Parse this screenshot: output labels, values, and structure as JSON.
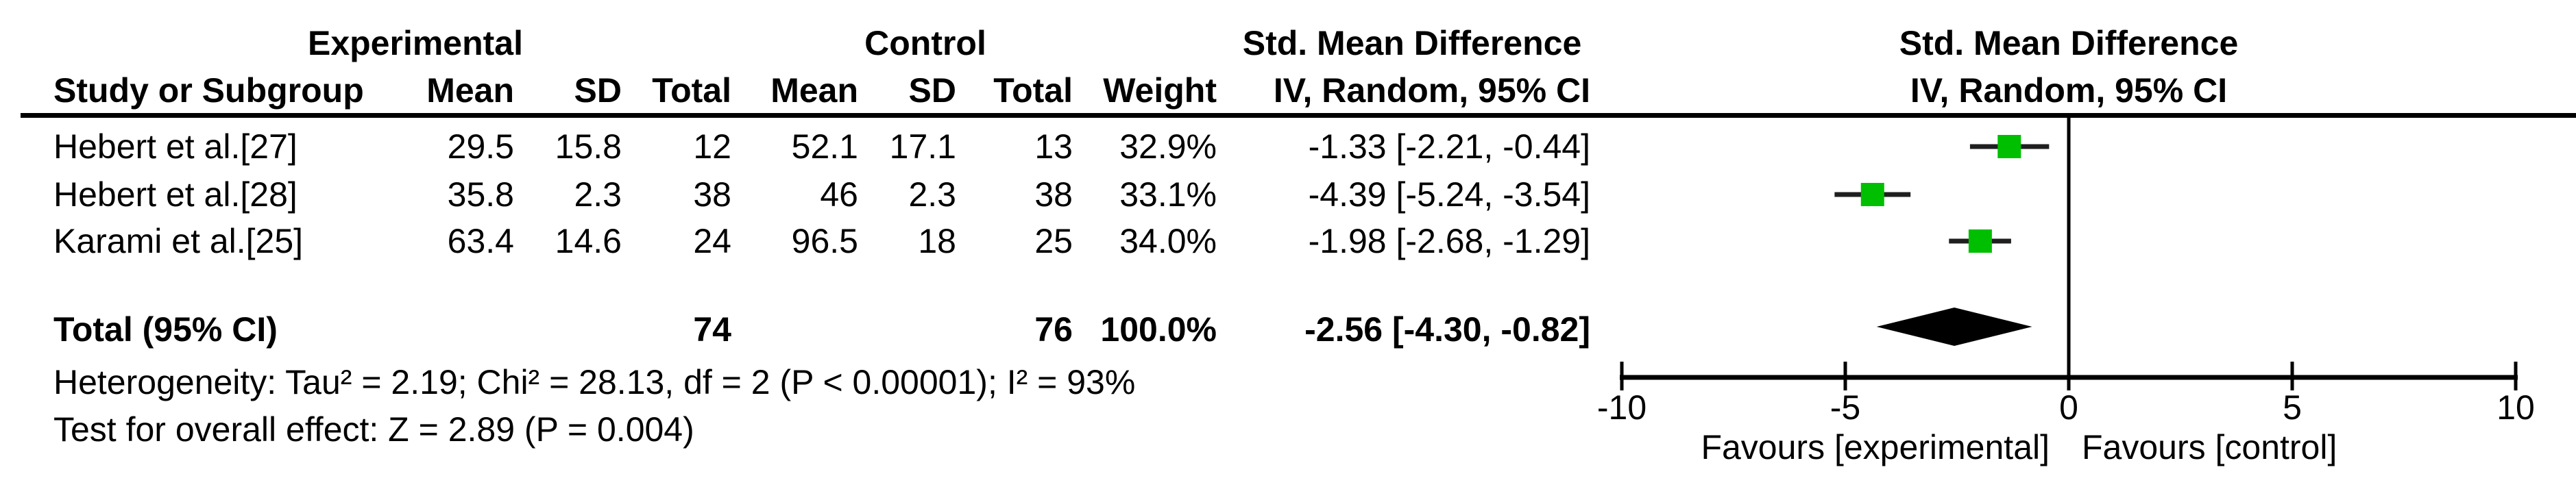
{
  "chart_data": {
    "type": "forest",
    "effect_measure": "Std. Mean Difference",
    "method": "IV, Random, 95% CI",
    "columns": {
      "study": "Study or Subgroup",
      "experimental_group": "Experimental",
      "control_group": "Control",
      "mean": "Mean",
      "sd": "SD",
      "total": "Total",
      "weight": "Weight",
      "effect_header_line1": "Std. Mean Difference",
      "effect_header_line2": "IV, Random, 95% CI",
      "plot_header_line1": "Std. Mean Difference",
      "plot_header_line2": "IV, Random, 95% CI"
    },
    "studies": [
      {
        "name": "Hebert et al.[27]",
        "exp_mean": "29.5",
        "exp_sd": "15.8",
        "exp_total": "12",
        "ctrl_mean": "52.1",
        "ctrl_sd": "17.1",
        "ctrl_total": "13",
        "weight": "32.9%",
        "ci_label": "-1.33 [-2.21, -0.44]",
        "smd": -1.33,
        "ci_lo": -2.21,
        "ci_hi": -0.44
      },
      {
        "name": "Hebert et al.[28]",
        "exp_mean": "35.8",
        "exp_sd": "2.3",
        "exp_total": "38",
        "ctrl_mean": "46",
        "ctrl_sd": "2.3",
        "ctrl_total": "38",
        "weight": "33.1%",
        "ci_label": "-4.39 [-5.24, -3.54]",
        "smd": -4.39,
        "ci_lo": -5.24,
        "ci_hi": -3.54
      },
      {
        "name": "Karami et al.[25]",
        "exp_mean": "63.4",
        "exp_sd": "14.6",
        "exp_total": "24",
        "ctrl_mean": "96.5",
        "ctrl_sd": "18",
        "ctrl_total": "25",
        "weight": "34.0%",
        "ci_label": "-1.98 [-2.68, -1.29]",
        "smd": -1.98,
        "ci_lo": -2.68,
        "ci_hi": -1.29
      }
    ],
    "total": {
      "label": "Total (95% CI)",
      "exp_total": "74",
      "ctrl_total": "76",
      "weight": "100.0%",
      "ci_label": "-2.56 [-4.30, -0.82]",
      "smd": -2.56,
      "ci_lo": -4.3,
      "ci_hi": -0.82
    },
    "footnotes": {
      "heterogeneity": "Heterogeneity: Tau² = 2.19; Chi² = 28.13, df = 2 (P < 0.00001); I² = 93%",
      "overall_effect": "Test for overall effect: Z = 2.89 (P = 0.004)"
    },
    "axis": {
      "xlim": [
        -10,
        10
      ],
      "ticks": [
        -10,
        -5,
        0,
        5,
        10
      ],
      "tick_labels": [
        "-10",
        "-5",
        "0",
        "5",
        "10"
      ],
      "left_label": "Favours [experimental]",
      "right_label": "Favours [control]"
    },
    "colors": {
      "square": "#00bf00",
      "diamond": "#000000",
      "ci_line": "#1f1f1f",
      "axis": "#000000",
      "text": "#000000",
      "background": "#ffffff"
    }
  }
}
